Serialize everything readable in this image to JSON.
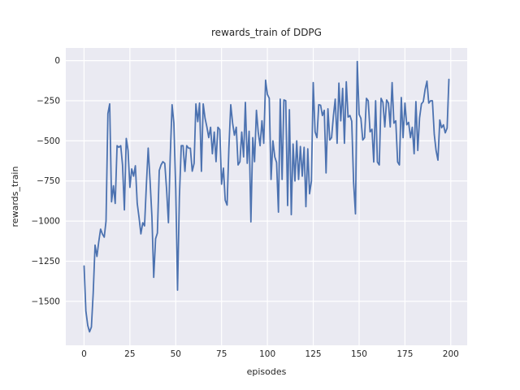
{
  "figure": {
    "background": "#ffffff"
  },
  "chart_data": {
    "type": "line",
    "title": "rewards_train of DDPG",
    "xlabel": "episodes",
    "ylabel": "rewards_train",
    "x_ticks": [
      0,
      25,
      50,
      75,
      100,
      125,
      150,
      175,
      200
    ],
    "x_tick_labels": [
      "0",
      "25",
      "50",
      "75",
      "100",
      "125",
      "150",
      "175",
      "200"
    ],
    "y_ticks": [
      0,
      -250,
      -500,
      -750,
      -1000,
      -1250,
      -1500
    ],
    "y_tick_labels": [
      "0",
      "−250",
      "−500",
      "−750",
      "−1000",
      "−1250",
      "−1500"
    ],
    "xlim": [
      -9.95,
      208.95
    ],
    "ylim": [
      -1774,
      79
    ],
    "grid": true,
    "legend": false,
    "style": {
      "axes_background": "#eaeaf2",
      "grid_color": "#ffffff",
      "line_color": "#4c72b0",
      "text_color": "#262626",
      "line_width": 1.8
    },
    "series": [
      {
        "name": "rewards_train",
        "x_is_episode_index_starting_at_0": true,
        "values": [
          -1280,
          -1560,
          -1650,
          -1690,
          -1660,
          -1450,
          -1150,
          -1220,
          -1130,
          -1050,
          -1080,
          -1100,
          -1000,
          -330,
          -270,
          -880,
          -780,
          -890,
          -530,
          -540,
          -530,
          -650,
          -930,
          -485,
          -560,
          -790,
          -675,
          -720,
          -655,
          -890,
          -980,
          -1080,
          -1010,
          -1030,
          -770,
          -545,
          -750,
          -975,
          -1350,
          -1110,
          -1075,
          -685,
          -650,
          -630,
          -640,
          -800,
          -1010,
          -600,
          -275,
          -390,
          -800,
          -1430,
          -850,
          -530,
          -530,
          -690,
          -530,
          -545,
          -546,
          -689,
          -640,
          -270,
          -380,
          -265,
          -690,
          -270,
          -360,
          -415,
          -480,
          -415,
          -580,
          -445,
          -630,
          -415,
          -430,
          -770,
          -670,
          -870,
          -900,
          -545,
          -275,
          -390,
          -465,
          -415,
          -650,
          -630,
          -445,
          -600,
          -260,
          -640,
          -440,
          -1005,
          -480,
          -630,
          -310,
          -445,
          -530,
          -375,
          -515,
          -122,
          -210,
          -235,
          -740,
          -500,
          -600,
          -635,
          -944,
          -240,
          -740,
          -245,
          -250,
          -903,
          -306,
          -960,
          -520,
          -750,
          -500,
          -740,
          -535,
          -720,
          -540,
          -910,
          -550,
          -830,
          -750,
          -137,
          -444,
          -480,
          -275,
          -278,
          -342,
          -310,
          -700,
          -300,
          -495,
          -480,
          -342,
          -240,
          -515,
          -140,
          -375,
          -173,
          -515,
          -132,
          -352,
          -342,
          -377,
          -760,
          -955,
          -5,
          -335,
          -360,
          -495,
          -480,
          -235,
          -250,
          -444,
          -428,
          -632,
          -250,
          -632,
          -650,
          -235,
          -260,
          -413,
          -245,
          -265,
          -413,
          -137,
          -390,
          -375,
          -632,
          -650,
          -230,
          -480,
          -265,
          -400,
          -385,
          -480,
          -415,
          -580,
          -255,
          -560,
          -357,
          -270,
          -255,
          -180,
          -128,
          -265,
          -250,
          -250,
          -460,
          -560,
          -620,
          -370,
          -418,
          -400,
          -450,
          -420,
          -117
        ]
      }
    ]
  }
}
